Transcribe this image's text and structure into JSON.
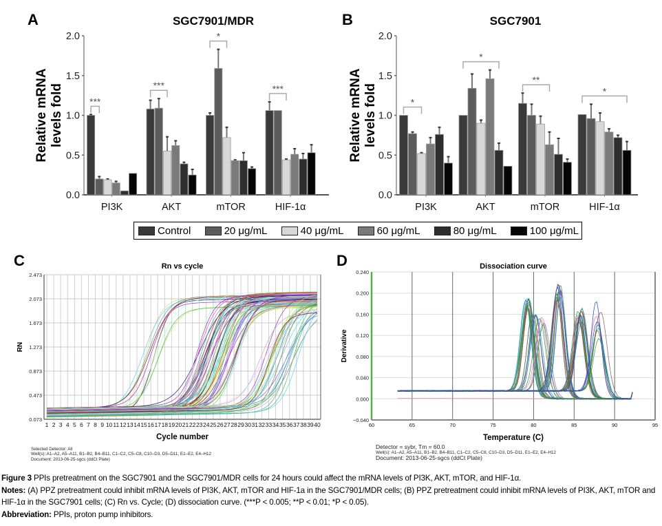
{
  "figure": {
    "caption_label": "Figure 3",
    "caption_text": "PPIs pretreatment on the SGC7901 and the SGC7901/MDR cells for 24 hours could affect the mRNA levels of PI3K, AKT, mTOR, and HIF-1α.",
    "notes_label": "Notes:",
    "notes_text": "(A) PPZ pretreatment could inhibit mRNA levels of PI3K, AKT, mTOR and HIF-1a in the SGC7901/MDR cells; (B) PPZ pretreatment could inhibit mRNA levels of PI3K, AKT, mTOR and HIF-1α in the SGC7901 cells; (C) Rn vs. Cycle; (D) dissociation curve. (***P < 0.005; **P < 0.01; *P < 0.05).",
    "abbreviation_label": "Abbreviation:",
    "abbreviation_text": "PPIs, proton pump inhibitors."
  },
  "legend": {
    "items": [
      {
        "label": "Control",
        "color": "#3a3a3a"
      },
      {
        "label": "20 μg/mL",
        "color": "#5c5c5c"
      },
      {
        "label": "40 μg/mL",
        "color": "#d8d8d8"
      },
      {
        "label": "60 μg/mL",
        "color": "#7a7a7a"
      },
      {
        "label": "80 μg/mL",
        "color": "#2e2e2e"
      },
      {
        "label": "100 μg/mL",
        "color": "#050505"
      }
    ]
  },
  "chart_data": [
    {
      "panel": "A",
      "type": "bar",
      "title": "SGC7901/MDR",
      "xlabel": "",
      "ylabel": "Relative mRNA levels fold",
      "ylabel_lines": [
        "Relative mRNA",
        "levels fold"
      ],
      "ylim": [
        0,
        2.0
      ],
      "yticks": [
        "0.0",
        "0.5",
        "1.0",
        "1.5",
        "2.0"
      ],
      "categories": [
        "PI3K",
        "AKT",
        "mTOR",
        "HIF-1α"
      ],
      "series": [
        {
          "name": "Control",
          "values": [
            1.0,
            1.08,
            1.0,
            1.06
          ],
          "errors": [
            0.01,
            0.11,
            0.03,
            0.11
          ]
        },
        {
          "name": "20 μg/mL",
          "values": [
            0.2,
            1.09,
            1.59,
            1.06
          ],
          "errors": [
            0.03,
            0.12,
            0.24,
            0.0
          ]
        },
        {
          "name": "40 μg/mL",
          "values": [
            0.19,
            0.55,
            0.72,
            0.44
          ],
          "errors": [
            0.01,
            0.18,
            0.13,
            0.01
          ]
        },
        {
          "name": "60 μg/mL",
          "values": [
            0.15,
            0.62,
            0.43,
            0.51
          ],
          "errors": [
            0.02,
            0.06,
            0.01,
            0.07
          ]
        },
        {
          "name": "80 μg/mL",
          "values": [
            0.05,
            0.39,
            0.43,
            0.45
          ],
          "errors": [
            0.0,
            0.02,
            0.1,
            0.07
          ]
        },
        {
          "name": "100 μg/mL",
          "values": [
            0.27,
            0.25,
            0.33,
            0.53
          ],
          "errors": [
            0.0,
            0.07,
            0.02,
            0.1
          ]
        }
      ],
      "significance": [
        {
          "category": "PI3K",
          "label": "***",
          "from": 0,
          "to": 1
        },
        {
          "category": "AKT",
          "label": "***",
          "from": 0,
          "to": 2
        },
        {
          "category": "mTOR",
          "label": "*",
          "from": 0,
          "to": 2
        },
        {
          "category": "HIF-1α",
          "label": "***",
          "from": 0,
          "to": 2
        }
      ]
    },
    {
      "panel": "B",
      "type": "bar",
      "title": "SGC7901",
      "xlabel": "",
      "ylabel": "Relative mRNA levels fold",
      "ylabel_lines": [
        "Relative mRNA",
        "levels fold"
      ],
      "ylim": [
        0,
        2.0
      ],
      "yticks": [
        "0.0",
        "0.5",
        "1.0",
        "1.5",
        "2.0"
      ],
      "categories": [
        "PI3K",
        "AKT",
        "mTOR",
        "HIF-1α"
      ],
      "series": [
        {
          "name": "Control",
          "values": [
            1.0,
            1.0,
            1.15,
            1.01
          ],
          "errors": [
            0.0,
            0.0,
            0.13,
            0.0
          ]
        },
        {
          "name": "20 μg/mL",
          "values": [
            0.77,
            1.34,
            1.0,
            0.96
          ],
          "errors": [
            0.02,
            0.18,
            0.14,
            0.18
          ]
        },
        {
          "name": "40 μg/mL",
          "values": [
            0.52,
            0.9,
            0.89,
            0.92
          ],
          "errors": [
            0.01,
            0.04,
            0.1,
            0.11
          ]
        },
        {
          "name": "60 μg/mL",
          "values": [
            0.64,
            1.46,
            0.63,
            0.79
          ],
          "errors": [
            0.08,
            0.11,
            0.16,
            0.04
          ]
        },
        {
          "name": "80 μg/mL",
          "values": [
            0.76,
            0.56,
            0.51,
            0.72
          ],
          "errors": [
            0.09,
            0.09,
            0.2,
            0.03
          ]
        },
        {
          "name": "100 μg/mL",
          "values": [
            0.4,
            0.36,
            0.41,
            0.56
          ],
          "errors": [
            0.08,
            0.0,
            0.04,
            0.11
          ]
        }
      ],
      "significance": [
        {
          "category": "PI3K",
          "label": "*",
          "from": 0,
          "to": 2
        },
        {
          "category": "AKT",
          "label": "*",
          "from": 0,
          "to": 4
        },
        {
          "category": "mTOR",
          "label": "**",
          "from": 0,
          "to": 3
        },
        {
          "category": "HIF-1α",
          "label": "*",
          "from": 0,
          "to": 5
        }
      ]
    },
    {
      "panel": "C",
      "type": "line",
      "title": "Rn vs cycle",
      "xlabel": "Cycle number",
      "ylabel": "RN",
      "xlim": [
        1,
        40
      ],
      "ylim": [
        0.073,
        2.473
      ],
      "yticks": [
        "0.073",
        "0.473",
        "0.873",
        "1.273",
        "1.673",
        "2.073",
        "2.473"
      ],
      "xticks": [
        "1",
        "2",
        "3",
        "4",
        "5",
        "6",
        "7",
        "8",
        "9",
        "10",
        "11",
        "12",
        "13",
        "14",
        "15",
        "16",
        "17",
        "18",
        "19",
        "20",
        "21",
        "22",
        "23",
        "24",
        "25",
        "26",
        "27",
        "28",
        "29",
        "30",
        "31",
        "32",
        "33",
        "34",
        "35",
        "36",
        "37",
        "38",
        "39",
        "40"
      ],
      "grid": true,
      "curve_groups": [
        {
          "midpoint_cycle_range": [
            14.5,
            17.5
          ],
          "plateau_range": [
            1.85,
            2.1
          ],
          "count": 10
        },
        {
          "midpoint_cycle_range": [
            22.5,
            28.5
          ],
          "plateau_range": [
            1.85,
            2.12
          ],
          "count": 60
        },
        {
          "midpoint_cycle_range": [
            31.5,
            37.5
          ],
          "plateau_range": [
            1.75,
            2.1
          ],
          "count": 26
        }
      ],
      "baseline_range": [
        0.1,
        0.33
      ],
      "footnotes": [
        "Selected Detector: All",
        "Well(s): A1–A2, A5–A11, B1–B2, B4–B11, C1–C2, C5–C8, C10–D3, D5–D11, E1–E2, E4–H12",
        "Document: 2013-06-25-sgcs (ddCt Plate)"
      ]
    },
    {
      "panel": "D",
      "type": "line",
      "title": "Dissociation curve",
      "xlabel": "Temperature (C)",
      "ylabel": "Derivative",
      "xlim": [
        60,
        95
      ],
      "ylim": [
        -0.04,
        0.24
      ],
      "xticks": [
        "60",
        "65",
        "70",
        "75",
        "80",
        "85",
        "90",
        "95"
      ],
      "yticks": [
        "−0.040",
        "0.000",
        "0.040",
        "0.080",
        "0.120",
        "0.160",
        "0.200",
        "0.240"
      ],
      "grid": true,
      "temperature_start": 63.2,
      "temperature_end": 92.4,
      "baseline": 0.015,
      "peak_groups": [
        {
          "tm": 79.2,
          "height_range": [
            0.155,
            0.178
          ],
          "count": 14
        },
        {
          "tm": 80.0,
          "height_range": [
            0.14,
            0.158
          ],
          "count": 6
        },
        {
          "tm": 81.0,
          "height_range": [
            0.125,
            0.14
          ],
          "count": 5
        },
        {
          "tm": 83.1,
          "height_range": [
            0.17,
            0.204
          ],
          "count": 14
        },
        {
          "tm": 85.7,
          "height_range": [
            0.128,
            0.166
          ],
          "count": 14
        },
        {
          "tm": 88.0,
          "height_range": [
            0.095,
            0.178
          ],
          "count": 8
        }
      ],
      "footnotes": [
        "Detector = sybr, Tm = 60.0",
        "Well(s): A1–A2, A5–A11, B1–B2, B4–B11, C1–C2, C5–C8, C10–D3, D5–D11, E1–E2, E4–H12",
        "Document: 2013-06-25-sgcs (ddCt Plate)"
      ]
    }
  ],
  "panel_letters": [
    "A",
    "B",
    "C",
    "D"
  ]
}
